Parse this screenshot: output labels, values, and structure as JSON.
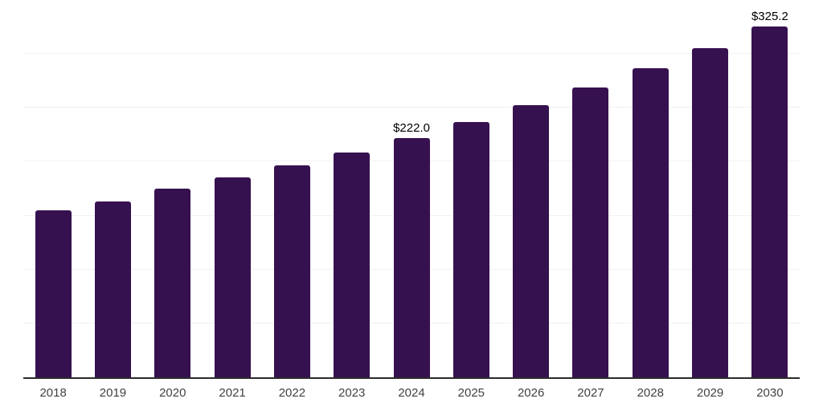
{
  "chart_data": {
    "type": "bar",
    "categories": [
      "2018",
      "2019",
      "2020",
      "2021",
      "2022",
      "2023",
      "2024",
      "2025",
      "2026",
      "2027",
      "2028",
      "2029",
      "2030"
    ],
    "values": [
      154.8,
      163.2,
      174.9,
      185.4,
      196.5,
      208.4,
      222.0,
      236.6,
      252.1,
      268.7,
      286.4,
      305.2,
      325.2
    ],
    "value_labels": {
      "2024": "$222.0",
      "2030": "$325.2"
    },
    "ylim": [
      0,
      350
    ],
    "gridline_step": 50,
    "grid": "horizontal",
    "legend": "none",
    "xlabel": "",
    "ylabel": "",
    "colors": {
      "bar": "#361150",
      "axis_line": "#2b2b2b",
      "gridline": "#f1f1f1",
      "tick_label": "#414141",
      "value_label": "#000000",
      "background": "#ffffff"
    }
  }
}
